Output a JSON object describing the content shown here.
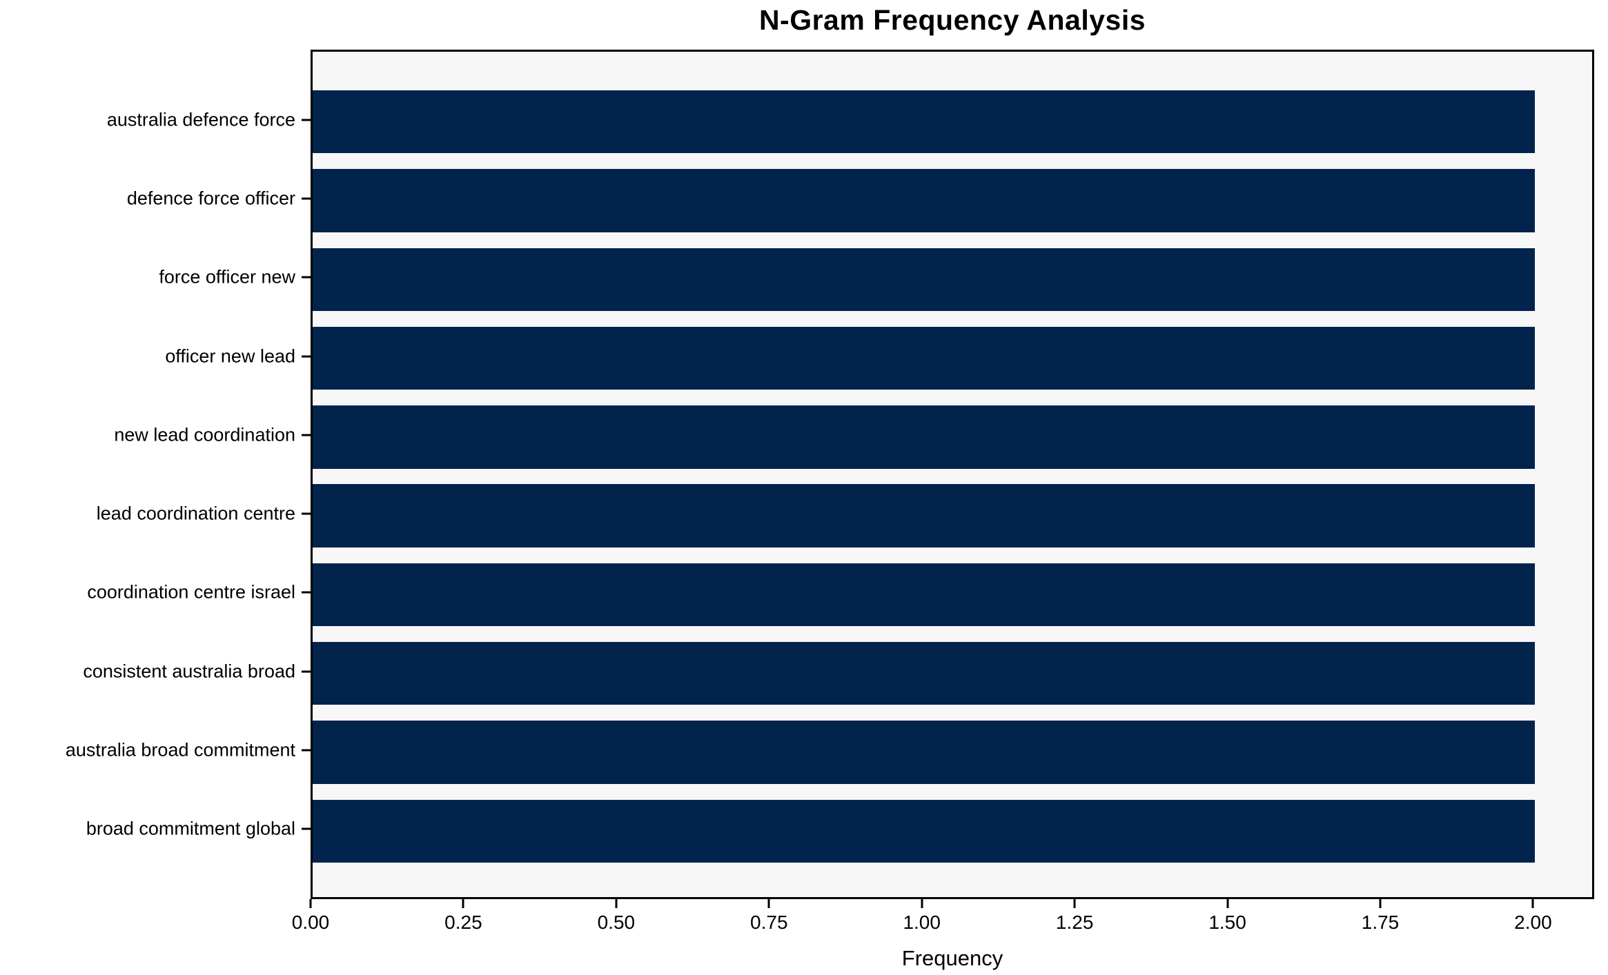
{
  "chart_data": {
    "type": "bar",
    "orientation": "horizontal",
    "title": "N-Gram Frequency Analysis",
    "xlabel": "Frequency",
    "ylabel": "",
    "categories": [
      "australia defence force",
      "defence force officer",
      "force officer new",
      "officer new lead",
      "new lead coordination",
      "lead coordination centre",
      "coordination centre israel",
      "consistent australia broad",
      "australia broad commitment",
      "broad commitment global"
    ],
    "values": [
      2,
      2,
      2,
      2,
      2,
      2,
      2,
      2,
      2,
      2
    ],
    "x_ticks": [
      "0.00",
      "0.25",
      "0.50",
      "0.75",
      "1.00",
      "1.25",
      "1.50",
      "1.75",
      "2.00"
    ],
    "x_tick_values": [
      0,
      0.25,
      0.5,
      0.75,
      1.0,
      1.25,
      1.5,
      1.75,
      2.0
    ],
    "xlim": [
      0,
      2.1
    ],
    "grid": false,
    "legend_position": "none",
    "bar_color": "#02234c",
    "plot_bg_color": "#f7f7f7",
    "figure_bg_color": "#ffffff",
    "spine_color": "#000000"
  }
}
